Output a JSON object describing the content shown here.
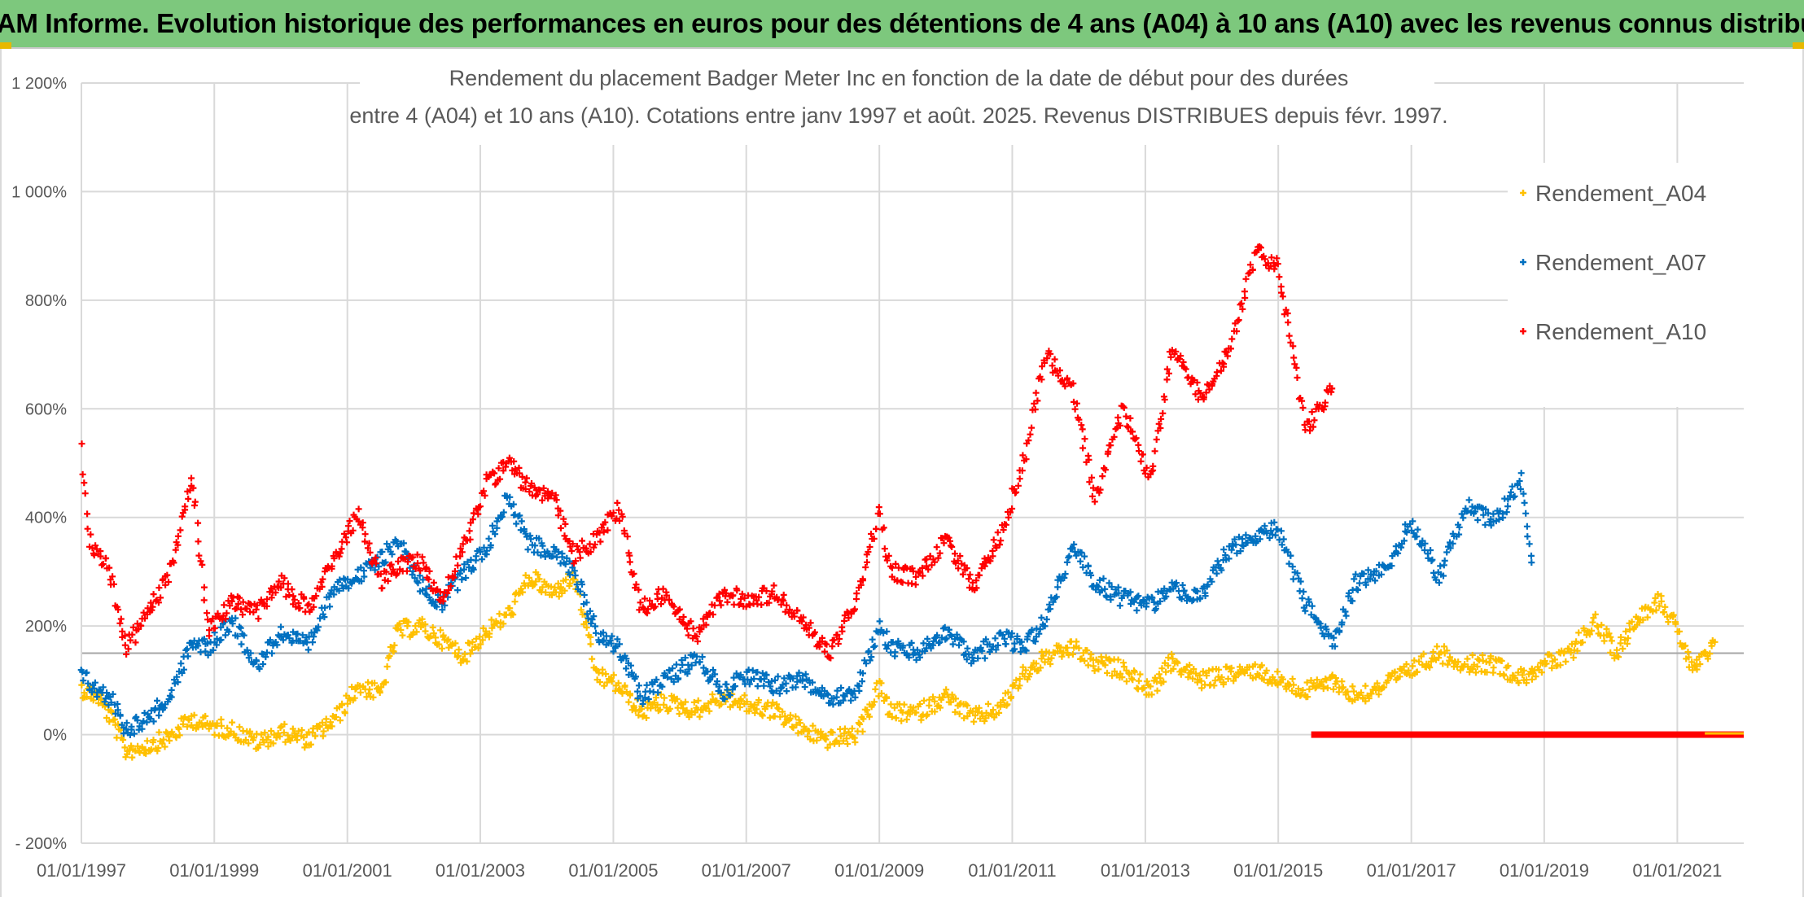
{
  "header": {
    "title": "ADAM Informe. Evolution historique des performances en euros pour des détentions de 4 ans (A04) à 10 ans (A10) avec les revenus connus distribués"
  },
  "chart_data": {
    "type": "scatter",
    "title_line1": "Rendement du placement Badger Meter Inc en fonction de la date de début pour des durées",
    "title_line2": "entre 4 (A04) et 10 ans (A10). Cotations entre janv 1997 et août. 2025. Revenus DISTRIBUES depuis févr. 1997.",
    "xlabel": "",
    "ylabel": "",
    "x_range": [
      "1997-01-01",
      "2022-01-01"
    ],
    "y_range": [
      -200,
      1200
    ],
    "y_ticks": [
      -200,
      0,
      200,
      400,
      600,
      800,
      1000,
      1200
    ],
    "y_tick_labels": [
      "- 200%",
      "0%",
      "200%",
      "400%",
      "600%",
      "800%",
      "1 000%",
      "1 200%"
    ],
    "x_ticks": [
      "1997-01-01",
      "1999-01-01",
      "2001-01-01",
      "2003-01-01",
      "2005-01-01",
      "2007-01-01",
      "2009-01-01",
      "2011-01-01",
      "2013-01-01",
      "2015-01-01",
      "2017-01-01",
      "2019-01-01",
      "2021-01-01"
    ],
    "x_tick_labels": [
      "01/01/1997",
      "01/01/1999",
      "01/01/2001",
      "01/01/2003",
      "01/01/2005",
      "01/01/2007",
      "01/01/2009",
      "01/01/2011",
      "01/01/2013",
      "01/01/2015",
      "01/01/2017",
      "01/01/2019",
      "01/01/2021"
    ],
    "reference_line_y": 150,
    "grid": true,
    "legend_position": "top-right",
    "series": [
      {
        "name": "Rendement_A04",
        "color": "#ffc000",
        "points": [
          [
            "1997-01-01",
            85
          ],
          [
            "1997-04-01",
            70
          ],
          [
            "1997-07-01",
            20
          ],
          [
            "1997-09-01",
            -30
          ],
          [
            "1998-01-01",
            -20
          ],
          [
            "1998-05-01",
            -5
          ],
          [
            "1998-09-01",
            30
          ],
          [
            "1998-12-01",
            15
          ],
          [
            "1999-04-01",
            10
          ],
          [
            "1999-09-01",
            -15
          ],
          [
            "2000-01-01",
            5
          ],
          [
            "2000-06-01",
            -10
          ],
          [
            "2000-11-01",
            30
          ],
          [
            "2001-03-01",
            90
          ],
          [
            "2001-07-01",
            75
          ],
          [
            "2001-10-01",
            190
          ],
          [
            "2002-02-01",
            200
          ],
          [
            "2002-06-01",
            175
          ],
          [
            "2002-10-01",
            145
          ],
          [
            "2003-02-01",
            190
          ],
          [
            "2003-06-01",
            220
          ],
          [
            "2003-10-01",
            290
          ],
          [
            "2004-02-01",
            260
          ],
          [
            "2004-06-01",
            290
          ],
          [
            "2004-10-01",
            110
          ],
          [
            "2005-02-01",
            90
          ],
          [
            "2005-06-01",
            40
          ],
          [
            "2005-10-01",
            60
          ],
          [
            "2006-04-01",
            45
          ],
          [
            "2006-09-01",
            70
          ],
          [
            "2007-01-01",
            55
          ],
          [
            "2007-06-01",
            45
          ],
          [
            "2007-11-01",
            10
          ],
          [
            "2008-04-01",
            -10
          ],
          [
            "2008-09-01",
            0
          ],
          [
            "2009-01-01",
            90
          ],
          [
            "2009-03-01",
            40
          ],
          [
            "2009-08-01",
            40
          ],
          [
            "2010-01-01",
            70
          ],
          [
            "2010-06-01",
            30
          ],
          [
            "2010-11-01",
            50
          ],
          [
            "2011-03-01",
            110
          ],
          [
            "2011-07-01",
            140
          ],
          [
            "2011-12-01",
            160
          ],
          [
            "2012-04-01",
            130
          ],
          [
            "2012-09-01",
            120
          ],
          [
            "2013-02-01",
            80
          ],
          [
            "2013-06-01",
            135
          ],
          [
            "2013-11-01",
            100
          ],
          [
            "2014-04-01",
            110
          ],
          [
            "2014-09-01",
            120
          ],
          [
            "2015-01-01",
            100
          ],
          [
            "2015-06-01",
            80
          ],
          [
            "2015-11-01",
            100
          ],
          [
            "2016-03-01",
            70
          ],
          [
            "2016-08-01",
            90
          ],
          [
            "2017-01-01",
            120
          ],
          [
            "2017-06-01",
            150
          ],
          [
            "2017-11-01",
            130
          ],
          [
            "2018-04-01",
            130
          ],
          [
            "2018-09-01",
            105
          ],
          [
            "2019-01-01",
            130
          ],
          [
            "2019-05-01",
            140
          ],
          [
            "2019-10-01",
            210
          ],
          [
            "2020-02-01",
            150
          ],
          [
            "2020-06-01",
            220
          ],
          [
            "2020-10-01",
            250
          ],
          [
            "2021-01-01",
            190
          ],
          [
            "2021-04-01",
            120
          ],
          [
            "2021-08-01",
            165
          ]
        ]
      },
      {
        "name": "Rendement_A07",
        "color": "#0070c0",
        "points": [
          [
            "1997-01-01",
            110
          ],
          [
            "1997-04-01",
            80
          ],
          [
            "1997-07-01",
            60
          ],
          [
            "1997-09-01",
            10
          ],
          [
            "1998-01-01",
            30
          ],
          [
            "1998-05-01",
            70
          ],
          [
            "1998-09-01",
            170
          ],
          [
            "1998-12-01",
            160
          ],
          [
            "1999-04-01",
            210
          ],
          [
            "1999-09-01",
            130
          ],
          [
            "2000-01-01",
            190
          ],
          [
            "2000-06-01",
            160
          ],
          [
            "2000-11-01",
            280
          ],
          [
            "2001-03-01",
            290
          ],
          [
            "2001-07-01",
            320
          ],
          [
            "2001-10-01",
            360
          ],
          [
            "2002-02-01",
            280
          ],
          [
            "2002-06-01",
            240
          ],
          [
            "2002-10-01",
            300
          ],
          [
            "2003-02-01",
            340
          ],
          [
            "2003-06-01",
            440
          ],
          [
            "2003-10-01",
            350
          ],
          [
            "2004-02-01",
            340
          ],
          [
            "2004-06-01",
            300
          ],
          [
            "2004-10-01",
            190
          ],
          [
            "2005-02-01",
            160
          ],
          [
            "2005-06-01",
            70
          ],
          [
            "2005-10-01",
            100
          ],
          [
            "2006-04-01",
            140
          ],
          [
            "2006-09-01",
            80
          ],
          [
            "2007-01-01",
            110
          ],
          [
            "2007-06-01",
            90
          ],
          [
            "2007-11-01",
            100
          ],
          [
            "2008-04-01",
            70
          ],
          [
            "2008-09-01",
            80
          ],
          [
            "2009-01-01",
            200
          ],
          [
            "2009-03-01",
            160
          ],
          [
            "2009-08-01",
            150
          ],
          [
            "2010-01-01",
            190
          ],
          [
            "2010-06-01",
            140
          ],
          [
            "2010-11-01",
            180
          ],
          [
            "2011-03-01",
            160
          ],
          [
            "2011-07-01",
            210
          ],
          [
            "2011-12-01",
            350
          ],
          [
            "2012-04-01",
            280
          ],
          [
            "2012-09-01",
            250
          ],
          [
            "2013-02-01",
            240
          ],
          [
            "2013-06-01",
            270
          ],
          [
            "2013-11-01",
            250
          ],
          [
            "2014-04-01",
            340
          ],
          [
            "2014-09-01",
            360
          ],
          [
            "2015-01-01",
            380
          ],
          [
            "2015-06-01",
            240
          ],
          [
            "2015-11-01",
            170
          ],
          [
            "2016-03-01",
            280
          ],
          [
            "2016-08-01",
            300
          ],
          [
            "2017-01-01",
            390
          ],
          [
            "2017-06-01",
            290
          ],
          [
            "2017-11-01",
            420
          ],
          [
            "2018-04-01",
            390
          ],
          [
            "2018-09-01",
            470
          ],
          [
            "2018-11-01",
            300
          ]
        ]
      },
      {
        "name": "Rendement_A10",
        "color": "#ff0000",
        "points": [
          [
            "1997-01-01",
            520
          ],
          [
            "1997-02-15",
            360
          ],
          [
            "1997-06-01",
            310
          ],
          [
            "1997-09-01",
            160
          ],
          [
            "1998-01-01",
            220
          ],
          [
            "1998-05-01",
            300
          ],
          [
            "1998-09-01",
            480
          ],
          [
            "1998-12-01",
            190
          ],
          [
            "1999-04-01",
            240
          ],
          [
            "1999-09-01",
            230
          ],
          [
            "2000-01-01",
            280
          ],
          [
            "2000-06-01",
            230
          ],
          [
            "2000-11-01",
            330
          ],
          [
            "2001-03-01",
            410
          ],
          [
            "2001-07-01",
            280
          ],
          [
            "2001-10-01",
            310
          ],
          [
            "2002-02-01",
            320
          ],
          [
            "2002-06-01",
            250
          ],
          [
            "2002-10-01",
            340
          ],
          [
            "2003-02-01",
            460
          ],
          [
            "2003-06-01",
            500
          ],
          [
            "2003-10-01",
            450
          ],
          [
            "2004-02-01",
            440
          ],
          [
            "2004-06-01",
            330
          ],
          [
            "2004-10-01",
            360
          ],
          [
            "2005-02-01",
            420
          ],
          [
            "2005-06-01",
            230
          ],
          [
            "2005-10-01",
            260
          ],
          [
            "2006-04-01",
            180
          ],
          [
            "2006-09-01",
            260
          ],
          [
            "2007-01-01",
            250
          ],
          [
            "2007-06-01",
            260
          ],
          [
            "2007-11-01",
            210
          ],
          [
            "2008-04-01",
            150
          ],
          [
            "2008-09-01",
            250
          ],
          [
            "2009-01-01",
            410
          ],
          [
            "2009-03-01",
            300
          ],
          [
            "2009-08-01",
            290
          ],
          [
            "2010-01-01",
            360
          ],
          [
            "2010-06-01",
            270
          ],
          [
            "2010-11-01",
            370
          ],
          [
            "2011-03-01",
            500
          ],
          [
            "2011-07-01",
            700
          ],
          [
            "2011-12-01",
            640
          ],
          [
            "2012-04-01",
            430
          ],
          [
            "2012-09-01",
            600
          ],
          [
            "2013-02-01",
            470
          ],
          [
            "2013-06-01",
            720
          ],
          [
            "2013-11-01",
            620
          ],
          [
            "2014-04-01",
            700
          ],
          [
            "2014-09-01",
            890
          ],
          [
            "2015-01-01",
            860
          ],
          [
            "2015-06-01",
            560
          ],
          [
            "2015-11-01",
            640
          ]
        ]
      }
    ],
    "zero_band": {
      "series": "Rendement_A10",
      "from": "2015-07-01",
      "to": "2022-01-01",
      "value": 0
    }
  }
}
